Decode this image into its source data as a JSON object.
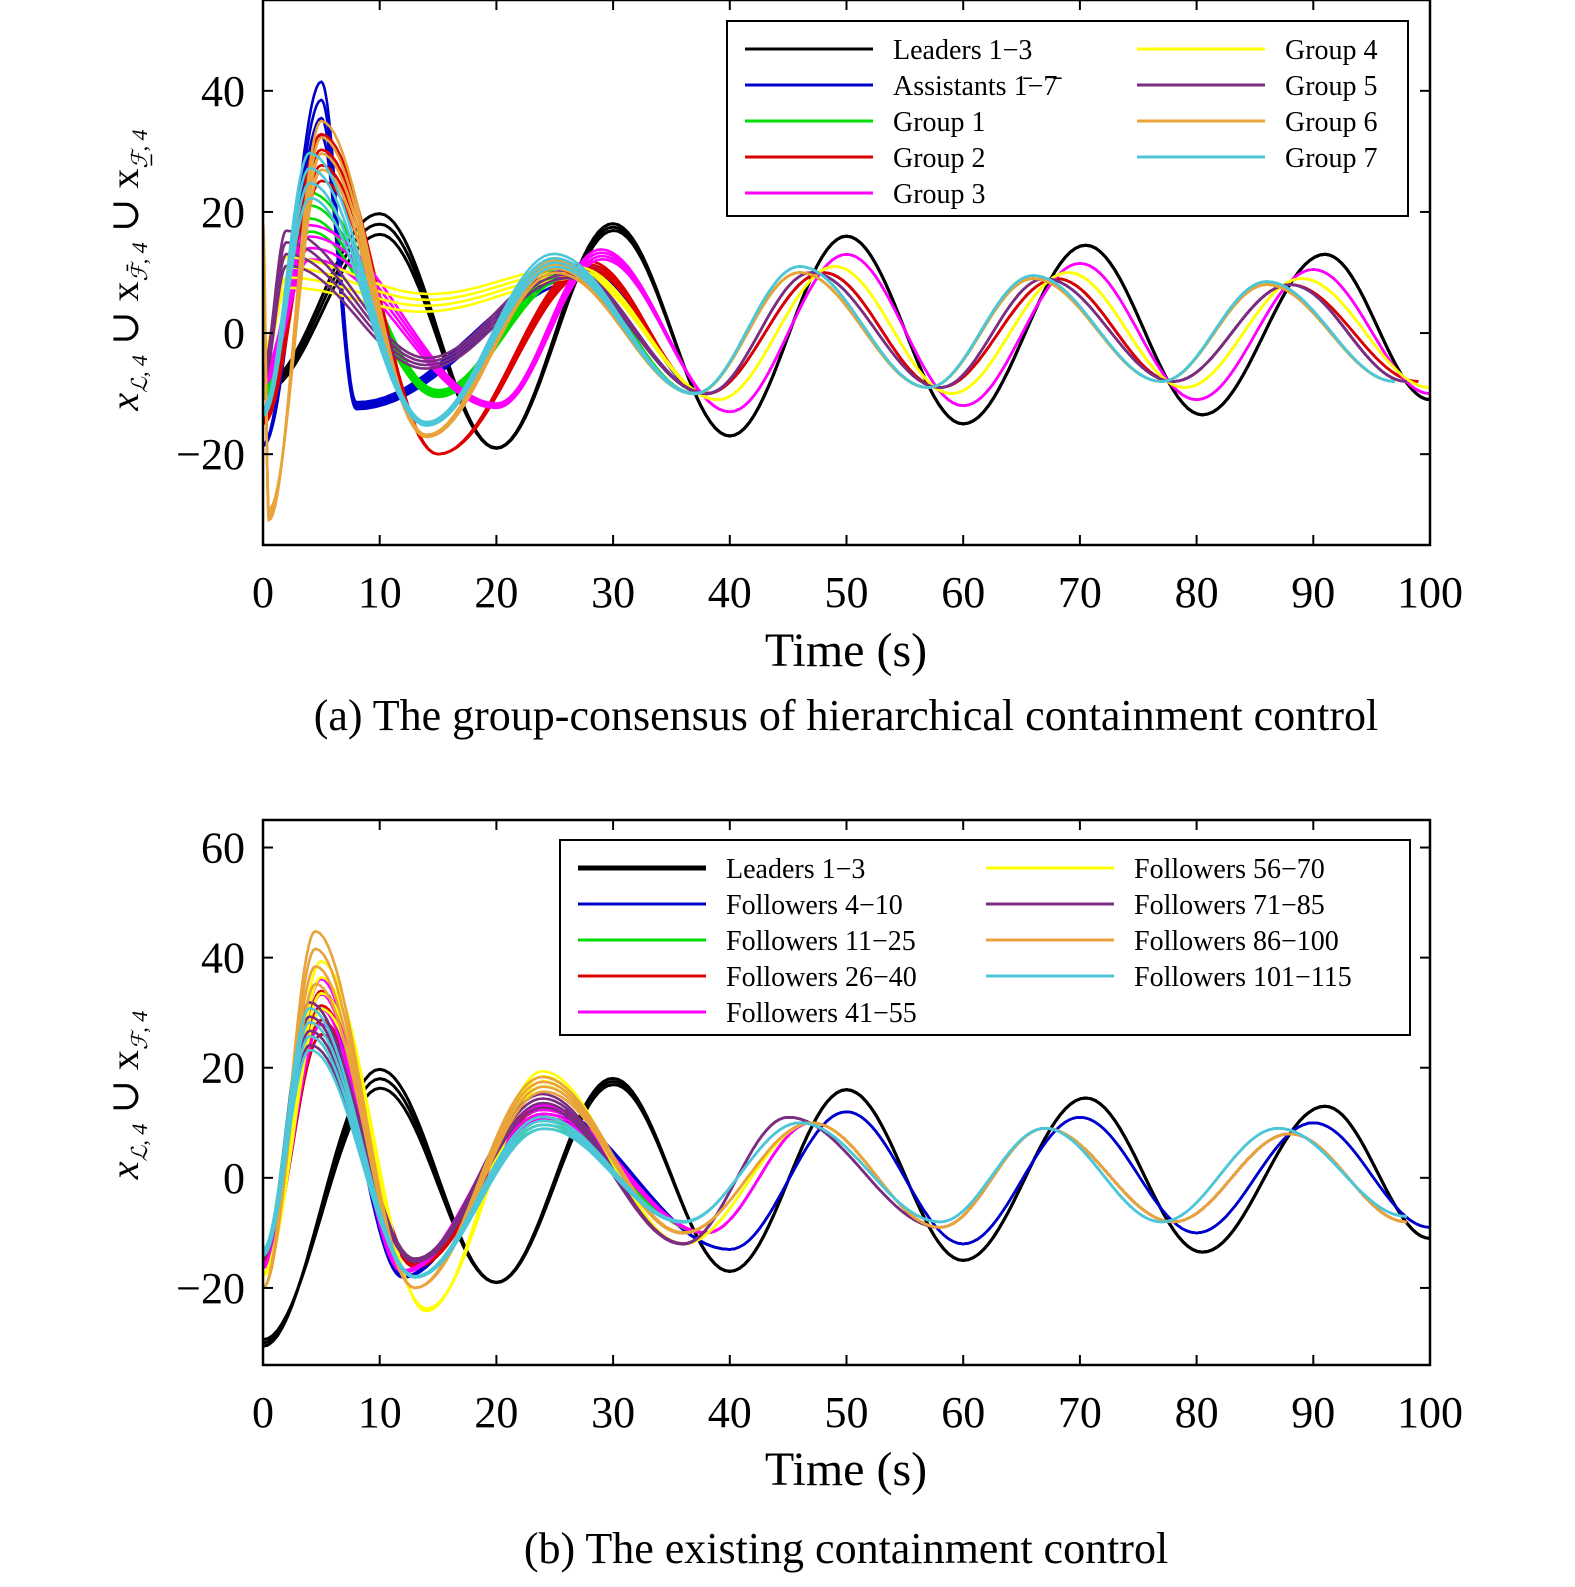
{
  "chart_data": [
    {
      "type": "line",
      "caption": "(a) The group-consensus of hierarchical containment control",
      "xlabel": "Time (s)",
      "ylabel": "x_{L,4} ∪ x_{F̄,4} ∪ x_{F̲,4}",
      "xlim": [
        0,
        100
      ],
      "ylim": [
        -35,
        55
      ],
      "xticks": [
        0,
        10,
        20,
        30,
        40,
        50,
        60,
        70,
        80,
        90,
        100
      ],
      "yticks": [
        -20,
        0,
        20,
        40
      ],
      "legend_position": "top-right",
      "legend_columns": 2,
      "series": [
        {
          "name": "Leaders 1−3",
          "color": "#000000",
          "peaks": [
            [
              10,
              18
            ],
            [
              20,
              -19
            ],
            [
              30,
              17.5
            ],
            [
              40,
              -17
            ],
            [
              50,
              16
            ],
            [
              60,
              -15
            ],
            [
              70.5,
              14.5
            ],
            [
              80.5,
              -13.5
            ],
            [
              91,
              13
            ],
            [
              100,
              -11
            ]
          ]
        },
        {
          "name": "Assistants 1̄−7̄",
          "color": "#0000cc",
          "peaks": [
            [
              5,
              37
            ],
            [
              8,
              -12
            ],
            [
              28,
              10
            ],
            [
              38,
              -10
            ],
            [
              48,
              10
            ],
            [
              58,
              -9
            ],
            [
              68,
              9
            ],
            [
              78,
              -8
            ],
            [
              88,
              8
            ],
            [
              98,
              -8
            ]
          ]
        },
        {
          "name": "Group 1",
          "color": "#00dd00",
          "peaks": [
            [
              4,
              20
            ],
            [
              15,
              -10
            ],
            [
              26,
              10
            ],
            [
              37,
              -10
            ],
            [
              46,
              10
            ],
            [
              57,
              -9
            ],
            [
              66,
              9
            ],
            [
              77,
              -8
            ],
            [
              86,
              8
            ],
            [
              97,
              -8
            ]
          ]
        },
        {
          "name": "Group 2",
          "color": "#dd0000",
          "peaks": [
            [
              5,
              29
            ],
            [
              15,
              -20
            ],
            [
              28,
              11
            ],
            [
              38,
              -10
            ],
            [
              48,
              10
            ],
            [
              58,
              -9
            ],
            [
              68,
              9
            ],
            [
              78,
              -8
            ],
            [
              88,
              8
            ],
            [
              99,
              -8
            ]
          ]
        },
        {
          "name": "Group 3",
          "color": "#ff00ff",
          "peaks": [
            [
              4,
              15
            ],
            [
              20,
              -12
            ],
            [
              29,
              13
            ],
            [
              40,
              -13
            ],
            [
              50,
              13
            ],
            [
              60,
              -12
            ],
            [
              70,
              11.5
            ],
            [
              80,
              -11
            ],
            [
              90,
              10.5
            ],
            [
              100,
              -10
            ]
          ]
        },
        {
          "name": "Group 4",
          "color": "#ffff00",
          "peaks": [
            [
              2,
              10
            ],
            [
              14,
              5
            ],
            [
              27,
              10
            ],
            [
              39,
              -11
            ],
            [
              49,
              11
            ],
            [
              59,
              -10
            ],
            [
              69,
              10
            ],
            [
              79,
              -9
            ],
            [
              89,
              9
            ],
            [
              100,
              -9
            ]
          ]
        },
        {
          "name": "Group 5",
          "color": "#7b2d82",
          "peaks": [
            [
              2,
              14
            ],
            [
              14,
              -5
            ],
            [
              26,
              10
            ],
            [
              38,
              -10
            ],
            [
              47,
              10
            ],
            [
              58,
              -9
            ],
            [
              67,
              9
            ],
            [
              78,
              -8
            ],
            [
              88,
              8
            ],
            [
              98,
              -8
            ]
          ]
        },
        {
          "name": "Group 6",
          "color": "#e8a33a",
          "peaks": [
            [
              0.5,
              -30
            ],
            [
              5,
              31
            ],
            [
              14,
              -17
            ],
            [
              25,
              11
            ],
            [
              37,
              -10
            ],
            [
              46,
              10
            ],
            [
              57,
              -9
            ],
            [
              66,
              9
            ],
            [
              77,
              -8
            ],
            [
              86,
              8
            ],
            [
              97,
              -8
            ]
          ]
        },
        {
          "name": "Group 7",
          "color": "#4dc6d8",
          "peaks": [
            [
              4,
              26
            ],
            [
              14,
              -15
            ],
            [
              25,
              12
            ],
            [
              37,
              -10
            ],
            [
              46,
              11
            ],
            [
              57,
              -9
            ],
            [
              66,
              9.5
            ],
            [
              77,
              -8
            ],
            [
              86,
              8.5
            ],
            [
              97,
              -8
            ]
          ]
        }
      ]
    },
    {
      "type": "line",
      "caption": "(b) The existing containment control",
      "xlabel": "Time (s)",
      "ylabel": "x_{L,4} ∪ x_{F,4}",
      "xlim": [
        0,
        100
      ],
      "ylim": [
        -34,
        65
      ],
      "xticks": [
        0,
        10,
        20,
        30,
        40,
        50,
        60,
        70,
        80,
        90,
        100
      ],
      "yticks": [
        -20,
        0,
        20,
        40,
        60
      ],
      "legend_position": "top-right",
      "legend_columns": 2,
      "series": [
        {
          "name": "Leaders 1−3",
          "color": "#000000",
          "peaks": [
            [
              0,
              -30
            ],
            [
              10,
              18
            ],
            [
              20,
              -19
            ],
            [
              30,
              17.5
            ],
            [
              40,
              -17
            ],
            [
              50,
              16
            ],
            [
              60,
              -15
            ],
            [
              70.5,
              14.5
            ],
            [
              80.5,
              -13.5
            ],
            [
              91,
              13
            ],
            [
              100,
              -11
            ]
          ]
        },
        {
          "name": "Followers 4−10",
          "color": "#0000cc",
          "peaks": [
            [
              5,
              30
            ],
            [
              12,
              -18
            ],
            [
              24,
              12
            ],
            [
              40,
              -13
            ],
            [
              50,
              12
            ],
            [
              60,
              -12
            ],
            [
              70,
              11
            ],
            [
              80,
              -10
            ],
            [
              90,
              10
            ],
            [
              100,
              -9
            ]
          ]
        },
        {
          "name": "Followers 11−25",
          "color": "#00dd00",
          "peaks": [
            [
              4,
              28
            ],
            [
              13,
              -15
            ],
            [
              24,
              10
            ],
            [
              38,
              -10
            ],
            [
              47,
              10
            ],
            [
              58,
              -9
            ],
            [
              67,
              9
            ],
            [
              78,
              -8
            ],
            [
              88,
              8
            ],
            [
              98,
              -8
            ]
          ]
        },
        {
          "name": "Followers 26−40",
          "color": "#dd0000",
          "peaks": [
            [
              5,
              30
            ],
            [
              13,
              -16
            ],
            [
              24,
              12
            ],
            [
              38,
              -10
            ],
            [
              47,
              10
            ],
            [
              58,
              -9
            ],
            [
              67,
              9
            ],
            [
              78,
              -8
            ],
            [
              88,
              8
            ],
            [
              98,
              -8
            ]
          ]
        },
        {
          "name": "Followers 41−55",
          "color": "#ff00ff",
          "peaks": [
            [
              5,
              32
            ],
            [
              12,
              -17
            ],
            [
              24,
              12
            ],
            [
              38,
              -10
            ],
            [
              47,
              10
            ],
            [
              58,
              -9
            ],
            [
              67,
              9
            ],
            [
              78,
              -8
            ],
            [
              88,
              8
            ],
            [
              98,
              -8
            ]
          ]
        },
        {
          "name": "Followers 56−70",
          "color": "#ffff00",
          "peaks": [
            [
              5,
              35
            ],
            [
              14,
              -24
            ],
            [
              24,
              18
            ],
            [
              36,
              -12
            ],
            [
              47,
              10
            ],
            [
              58,
              -9
            ],
            [
              67,
              9
            ],
            [
              78,
              -8
            ],
            [
              88,
              8
            ],
            [
              98,
              -8
            ]
          ]
        },
        {
          "name": "Followers 71−85",
          "color": "#7b2d82",
          "peaks": [
            [
              4,
              28
            ],
            [
              13,
              -15
            ],
            [
              24,
              14
            ],
            [
              36,
              -12
            ],
            [
              45,
              11
            ],
            [
              58,
              -9
            ],
            [
              67,
              9
            ],
            [
              78,
              -8
            ],
            [
              88,
              8
            ],
            [
              98,
              -8
            ]
          ]
        },
        {
          "name": "Followers 86−100",
          "color": "#e8a33a",
          "peaks": [
            [
              4.5,
              40
            ],
            [
              13,
              -20
            ],
            [
              24,
              17
            ],
            [
              36,
              -10
            ],
            [
              47,
              10
            ],
            [
              58,
              -9
            ],
            [
              67,
              9
            ],
            [
              78,
              -8
            ],
            [
              88,
              8
            ],
            [
              98,
              -8
            ]
          ]
        },
        {
          "name": "Followers 101−115",
          "color": "#4dc6d8",
          "peaks": [
            [
              4,
              27
            ],
            [
              13,
              -18
            ],
            [
              24,
              10
            ],
            [
              36,
              -8
            ],
            [
              46,
              10
            ],
            [
              58,
              -8
            ],
            [
              67,
              9
            ],
            [
              77,
              -8
            ],
            [
              87,
              9
            ],
            [
              98,
              -7
            ]
          ]
        }
      ]
    }
  ]
}
